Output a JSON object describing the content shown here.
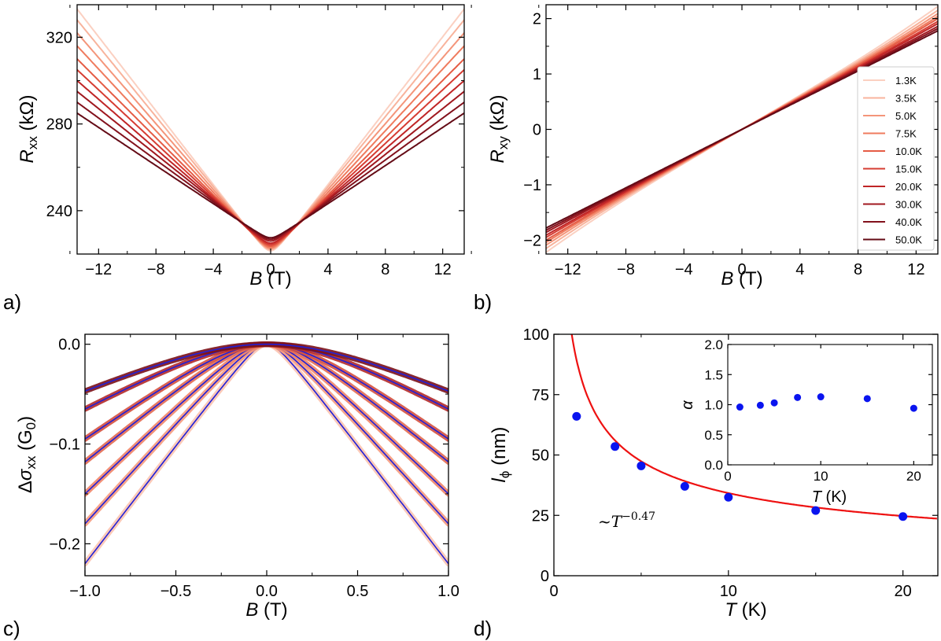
{
  "chart_data": [
    {
      "panel": "a)",
      "type": "line",
      "xlabel": {
        "symbol": "B",
        "unit": " (T)"
      },
      "ylabel": {
        "symbol": "R",
        "sub": "xx",
        "unit": " (kΩ)"
      },
      "xlim": [
        -13.5,
        13.5
      ],
      "ylim": [
        220,
        335
      ],
      "xticks": [
        "−12",
        "−8",
        "−4",
        "0",
        "4",
        "8",
        "12"
      ],
      "yticks": [
        "240",
        "280",
        "320"
      ],
      "series": [
        {
          "name": "1.3K",
          "color": "#fbd0c1",
          "r0": 221.5,
          "r13": 333
        },
        {
          "name": "3.5K",
          "color": "#f8b39c",
          "r0": 222.0,
          "r13": 328
        },
        {
          "name": "5.0K",
          "color": "#f4957a",
          "r0": 222.5,
          "r13": 322
        },
        {
          "name": "7.5K",
          "color": "#ef7b5e",
          "r0": 223.0,
          "r13": 316
        },
        {
          "name": "10.0K",
          "color": "#e55c45",
          "r0": 223.6,
          "r13": 310
        },
        {
          "name": "15.0K",
          "color": "#d63c32",
          "r0": 224.3,
          "r13": 305
        },
        {
          "name": "20.0K",
          "color": "#c02526",
          "r0": 225.0,
          "r13": 300
        },
        {
          "name": "30.0K",
          "color": "#a0181f",
          "r0": 226.0,
          "r13": 295
        },
        {
          "name": "40.0K",
          "color": "#82111c",
          "r0": 226.8,
          "r13": 290
        },
        {
          "name": "50.0K",
          "color": "#640b16",
          "r0": 227.5,
          "r13": 285
        }
      ]
    },
    {
      "panel": "b)",
      "type": "line",
      "xlabel": {
        "symbol": "B",
        "unit": " (T)"
      },
      "ylabel": {
        "symbol": "R",
        "sub": "xy",
        "unit": " (kΩ)"
      },
      "xlim": [
        -13.5,
        13.5
      ],
      "ylim": [
        -2.25,
        2.25
      ],
      "xticks": [
        "−12",
        "−8",
        "−4",
        "0",
        "4",
        "8",
        "12"
      ],
      "yticks": [
        "−2",
        "−1",
        "0",
        "1",
        "2"
      ],
      "legend": {
        "position": "right",
        "entries": [
          "1.3K",
          "3.5K",
          "5.0K",
          "7.5K",
          "10.0K",
          "15.0K",
          "20.0K",
          "30.0K",
          "40.0K",
          "50.0K"
        ]
      },
      "series": [
        {
          "name": "1.3K",
          "color": "#fbd0c1",
          "r13": 2.22
        },
        {
          "name": "3.5K",
          "color": "#f8b39c",
          "r13": 2.15
        },
        {
          "name": "5.0K",
          "color": "#f4957a",
          "r13": 2.09
        },
        {
          "name": "7.5K",
          "color": "#ef7b5e",
          "r13": 2.04
        },
        {
          "name": "10.0K",
          "color": "#e55c45",
          "r13": 2.0
        },
        {
          "name": "15.0K",
          "color": "#d63c32",
          "r13": 1.95
        },
        {
          "name": "20.0K",
          "color": "#c02526",
          "r13": 1.91
        },
        {
          "name": "30.0K",
          "color": "#a0181f",
          "r13": 1.86
        },
        {
          "name": "40.0K",
          "color": "#82111c",
          "r13": 1.82
        },
        {
          "name": "50.0K",
          "color": "#640b16",
          "r13": 1.78
        }
      ]
    },
    {
      "panel": "c)",
      "type": "scatter",
      "xlabel": {
        "symbol": "B",
        "unit": " (T)"
      },
      "ylabel": {
        "prefix": "Δ",
        "symbol": "σ",
        "sub": "xx",
        "unit": " (G",
        "unitsub": "0",
        "unitend": ")"
      },
      "xlim": [
        -1.0,
        1.0
      ],
      "ylim": [
        -0.232,
        0.01
      ],
      "xticks": [
        "−1.0",
        "−0.5",
        "0.0",
        "0.5",
        "1.0"
      ],
      "yticks": [
        "0.0",
        "−0.1",
        "−0.2"
      ],
      "fit_color": "#2020d8",
      "series": [
        {
          "name": "1.3K",
          "color": "#fbc3b0",
          "lphi": 66,
          "end": -0.22
        },
        {
          "name": "3.5K",
          "color": "#f59a7e",
          "lphi": 53.5,
          "end": -0.18
        },
        {
          "name": "5.0K",
          "color": "#f08468",
          "lphi": 45.5,
          "end": -0.15
        },
        {
          "name": "7.5K",
          "color": "#e26a52",
          "lphi": 37,
          "end": -0.118
        },
        {
          "name": "10.0K",
          "color": "#d4503f",
          "lphi": 32.5,
          "end": -0.095
        },
        {
          "name": "15.0K",
          "color": "#b32a2a",
          "lphi": 27,
          "end": -0.065
        },
        {
          "name": "20.0K",
          "color": "#7a1018",
          "lphi": 24.5,
          "end": -0.047
        }
      ]
    },
    {
      "panel": "d)",
      "type": "scatter",
      "xlabel": {
        "symbol": "T",
        "unit": " (K)"
      },
      "ylabel": {
        "symbol": "l",
        "sub": "ϕ",
        "unit": " (nm)"
      },
      "xlim": [
        0,
        22
      ],
      "ylim": [
        0,
        100
      ],
      "xticks": [
        "0",
        "10",
        "20"
      ],
      "yticks": [
        "0",
        "25",
        "50",
        "75",
        "100"
      ],
      "points": [
        {
          "T": 1.3,
          "l": 66
        },
        {
          "T": 3.5,
          "l": 53.5
        },
        {
          "T": 5.0,
          "l": 45.5
        },
        {
          "T": 7.5,
          "l": 37
        },
        {
          "T": 10.0,
          "l": 32.5
        },
        {
          "T": 15.0,
          "l": 27
        },
        {
          "T": 20.0,
          "l": 24.5
        }
      ],
      "fit": {
        "prefactor": 101,
        "exponent": -0.47,
        "color": "#ee1111"
      },
      "annotation": {
        "prefix": "~T",
        "exponent": "−0.47"
      },
      "inset": {
        "xlabel": {
          "symbol": "T",
          "unit": " (K)"
        },
        "ylabel": "α",
        "xlim": [
          0,
          22
        ],
        "ylim": [
          0,
          2.0
        ],
        "xticks": [
          "0",
          "10",
          "20"
        ],
        "yticks": [
          "0.0",
          "0.5",
          "1.0",
          "1.5",
          "2.0"
        ],
        "points": [
          {
            "T": 1.3,
            "a": 0.96
          },
          {
            "T": 3.5,
            "a": 0.99
          },
          {
            "T": 5.0,
            "a": 1.03
          },
          {
            "T": 7.5,
            "a": 1.12
          },
          {
            "T": 10.0,
            "a": 1.13
          },
          {
            "T": 15.0,
            "a": 1.1
          },
          {
            "T": 20.0,
            "a": 0.94
          }
        ]
      }
    }
  ]
}
